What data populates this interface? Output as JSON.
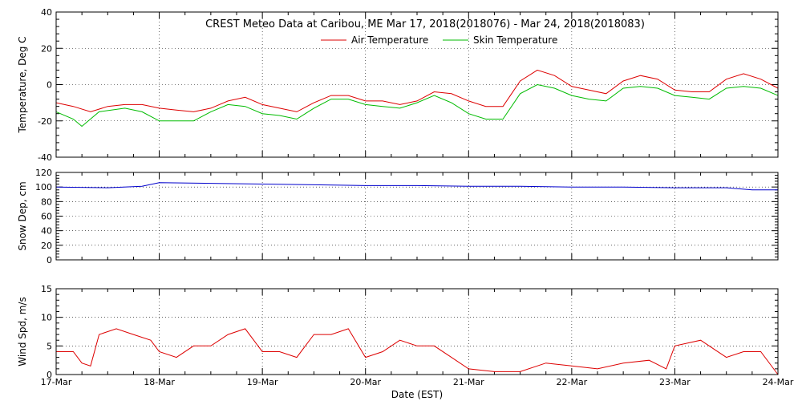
{
  "chart_data": {
    "type": "line",
    "title": "CREST Meteo Data at Caribou, ME   Mar 17, 2018(2018076) - Mar 24, 2018(2018083)",
    "xlabel": "Date (EST)",
    "x_ticks": [
      "17-Mar",
      "18-Mar",
      "19-Mar",
      "20-Mar",
      "21-Mar",
      "22-Mar",
      "23-Mar",
      "24-Mar"
    ],
    "xlim": [
      "2018-03-17",
      "2018-03-24"
    ],
    "grid": true,
    "legend_position": "top-center",
    "panels": [
      {
        "ylabel": "Temperature, Deg C",
        "ylim": [
          -40,
          40
        ],
        "yticks": [
          -40,
          -20,
          0,
          20,
          40
        ],
        "series": [
          {
            "name": "Air Temperature",
            "color": "#dd0000",
            "points": [
              [
                "2018-03-17 00:00",
                -10
              ],
              [
                "2018-03-17 04:00",
                -12
              ],
              [
                "2018-03-17 08:00",
                -15
              ],
              [
                "2018-03-17 12:00",
                -12
              ],
              [
                "2018-03-17 16:00",
                -11
              ],
              [
                "2018-03-17 20:00",
                -11
              ],
              [
                "2018-03-18 00:00",
                -13
              ],
              [
                "2018-03-18 04:00",
                -14
              ],
              [
                "2018-03-18 08:00",
                -15
              ],
              [
                "2018-03-18 12:00",
                -13
              ],
              [
                "2018-03-18 16:00",
                -9
              ],
              [
                "2018-03-18 20:00",
                -7
              ],
              [
                "2018-03-19 00:00",
                -11
              ],
              [
                "2018-03-19 04:00",
                -13
              ],
              [
                "2018-03-19 08:00",
                -15
              ],
              [
                "2018-03-19 12:00",
                -10
              ],
              [
                "2018-03-19 16:00",
                -6
              ],
              [
                "2018-03-19 20:00",
                -6
              ],
              [
                "2018-03-20 00:00",
                -9
              ],
              [
                "2018-03-20 04:00",
                -9
              ],
              [
                "2018-03-20 08:00",
                -11
              ],
              [
                "2018-03-20 12:00",
                -9
              ],
              [
                "2018-03-20 16:00",
                -4
              ],
              [
                "2018-03-20 20:00",
                -5
              ],
              [
                "2018-03-21 00:00",
                -9
              ],
              [
                "2018-03-21 04:00",
                -12
              ],
              [
                "2018-03-21 08:00",
                -12
              ],
              [
                "2018-03-21 12:00",
                2
              ],
              [
                "2018-03-21 16:00",
                8
              ],
              [
                "2018-03-21 20:00",
                5
              ],
              [
                "2018-03-22 00:00",
                -1
              ],
              [
                "2018-03-22 04:00",
                -3
              ],
              [
                "2018-03-22 08:00",
                -5
              ],
              [
                "2018-03-22 12:00",
                2
              ],
              [
                "2018-03-22 16:00",
                5
              ],
              [
                "2018-03-22 20:00",
                3
              ],
              [
                "2018-03-23 00:00",
                -3
              ],
              [
                "2018-03-23 04:00",
                -4
              ],
              [
                "2018-03-23 08:00",
                -4
              ],
              [
                "2018-03-23 12:00",
                3
              ],
              [
                "2018-03-23 16:00",
                6
              ],
              [
                "2018-03-23 20:00",
                3
              ],
              [
                "2018-03-24 00:00",
                -2
              ]
            ]
          },
          {
            "name": "Skin Temperature",
            "color": "#00bb00",
            "points": [
              [
                "2018-03-17 00:00",
                -15
              ],
              [
                "2018-03-17 04:00",
                -19
              ],
              [
                "2018-03-17 06:00",
                -23
              ],
              [
                "2018-03-17 10:00",
                -15
              ],
              [
                "2018-03-17 16:00",
                -13
              ],
              [
                "2018-03-17 20:00",
                -15
              ],
              [
                "2018-03-18 00:00",
                -20
              ],
              [
                "2018-03-18 04:00",
                -20
              ],
              [
                "2018-03-18 08:00",
                -20
              ],
              [
                "2018-03-18 12:00",
                -15
              ],
              [
                "2018-03-18 16:00",
                -11
              ],
              [
                "2018-03-18 20:00",
                -12
              ],
              [
                "2018-03-19 00:00",
                -16
              ],
              [
                "2018-03-19 04:00",
                -17
              ],
              [
                "2018-03-19 08:00",
                -19
              ],
              [
                "2018-03-19 12:00",
                -13
              ],
              [
                "2018-03-19 16:00",
                -8
              ],
              [
                "2018-03-19 20:00",
                -8
              ],
              [
                "2018-03-20 00:00",
                -11
              ],
              [
                "2018-03-20 04:00",
                -12
              ],
              [
                "2018-03-20 08:00",
                -13
              ],
              [
                "2018-03-20 12:00",
                -10
              ],
              [
                "2018-03-20 16:00",
                -6
              ],
              [
                "2018-03-20 20:00",
                -10
              ],
              [
                "2018-03-21 00:00",
                -16
              ],
              [
                "2018-03-21 04:00",
                -19
              ],
              [
                "2018-03-21 08:00",
                -19
              ],
              [
                "2018-03-21 12:00",
                -5
              ],
              [
                "2018-03-21 16:00",
                0
              ],
              [
                "2018-03-21 20:00",
                -2
              ],
              [
                "2018-03-22 00:00",
                -6
              ],
              [
                "2018-03-22 04:00",
                -8
              ],
              [
                "2018-03-22 08:00",
                -9
              ],
              [
                "2018-03-22 12:00",
                -2
              ],
              [
                "2018-03-22 16:00",
                -1
              ],
              [
                "2018-03-22 20:00",
                -2
              ],
              [
                "2018-03-23 00:00",
                -6
              ],
              [
                "2018-03-23 04:00",
                -7
              ],
              [
                "2018-03-23 08:00",
                -8
              ],
              [
                "2018-03-23 12:00",
                -2
              ],
              [
                "2018-03-23 16:00",
                -1
              ],
              [
                "2018-03-23 20:00",
                -2
              ],
              [
                "2018-03-24 00:00",
                -6
              ]
            ]
          }
        ]
      },
      {
        "ylabel": "Snow Dep, cm",
        "ylim": [
          0,
          120
        ],
        "yticks": [
          0,
          20,
          40,
          60,
          80,
          100,
          120
        ],
        "series": [
          {
            "color": "#0000cc",
            "points": [
              [
                "2018-03-17 00:00",
                100
              ],
              [
                "2018-03-17 12:00",
                99
              ],
              [
                "2018-03-17 20:00",
                101
              ],
              [
                "2018-03-18 00:00",
                106
              ],
              [
                "2018-03-18 12:00",
                105
              ],
              [
                "2018-03-19 00:00",
                104
              ],
              [
                "2018-03-19 12:00",
                103
              ],
              [
                "2018-03-20 00:00",
                102
              ],
              [
                "2018-03-20 12:00",
                102
              ],
              [
                "2018-03-21 00:00",
                101
              ],
              [
                "2018-03-21 12:00",
                101
              ],
              [
                "2018-03-22 00:00",
                100
              ],
              [
                "2018-03-22 12:00",
                100
              ],
              [
                "2018-03-23 00:00",
                99
              ],
              [
                "2018-03-23 12:00",
                99
              ],
              [
                "2018-03-23 18:00",
                96
              ],
              [
                "2018-03-24 00:00",
                96
              ]
            ]
          }
        ]
      },
      {
        "ylabel": "Wind Spd, m/s",
        "ylim": [
          0,
          15
        ],
        "yticks": [
          0,
          5,
          10,
          15
        ],
        "series": [
          {
            "color": "#dd0000",
            "points": [
              [
                "2018-03-17 00:00",
                4
              ],
              [
                "2018-03-17 04:00",
                4
              ],
              [
                "2018-03-17 06:00",
                2
              ],
              [
                "2018-03-17 08:00",
                1.5
              ],
              [
                "2018-03-17 10:00",
                7
              ],
              [
                "2018-03-17 14:00",
                8
              ],
              [
                "2018-03-17 18:00",
                7
              ],
              [
                "2018-03-17 22:00",
                6
              ],
              [
                "2018-03-18 00:00",
                4
              ],
              [
                "2018-03-18 04:00",
                3
              ],
              [
                "2018-03-18 08:00",
                5
              ],
              [
                "2018-03-18 12:00",
                5
              ],
              [
                "2018-03-18 16:00",
                7
              ],
              [
                "2018-03-18 20:00",
                8
              ],
              [
                "2018-03-19 00:00",
                4
              ],
              [
                "2018-03-19 04:00",
                4
              ],
              [
                "2018-03-19 08:00",
                3
              ],
              [
                "2018-03-19 12:00",
                7
              ],
              [
                "2018-03-19 16:00",
                7
              ],
              [
                "2018-03-19 20:00",
                8
              ],
              [
                "2018-03-20 00:00",
                3
              ],
              [
                "2018-03-20 04:00",
                4
              ],
              [
                "2018-03-20 08:00",
                6
              ],
              [
                "2018-03-20 12:00",
                5
              ],
              [
                "2018-03-20 16:00",
                5
              ],
              [
                "2018-03-20 20:00",
                3
              ],
              [
                "2018-03-21 00:00",
                1
              ],
              [
                "2018-03-21 06:00",
                0.5
              ],
              [
                "2018-03-21 12:00",
                0.5
              ],
              [
                "2018-03-21 18:00",
                2
              ],
              [
                "2018-03-22 00:00",
                1.5
              ],
              [
                "2018-03-22 06:00",
                1
              ],
              [
                "2018-03-22 12:00",
                2
              ],
              [
                "2018-03-22 18:00",
                2.5
              ],
              [
                "2018-03-22 22:00",
                1
              ],
              [
                "2018-03-23 00:00",
                5
              ],
              [
                "2018-03-23 06:00",
                6
              ],
              [
                "2018-03-23 12:00",
                3
              ],
              [
                "2018-03-23 16:00",
                4
              ],
              [
                "2018-03-23 20:00",
                4
              ],
              [
                "2018-03-24 00:00",
                0
              ]
            ]
          }
        ]
      }
    ]
  }
}
